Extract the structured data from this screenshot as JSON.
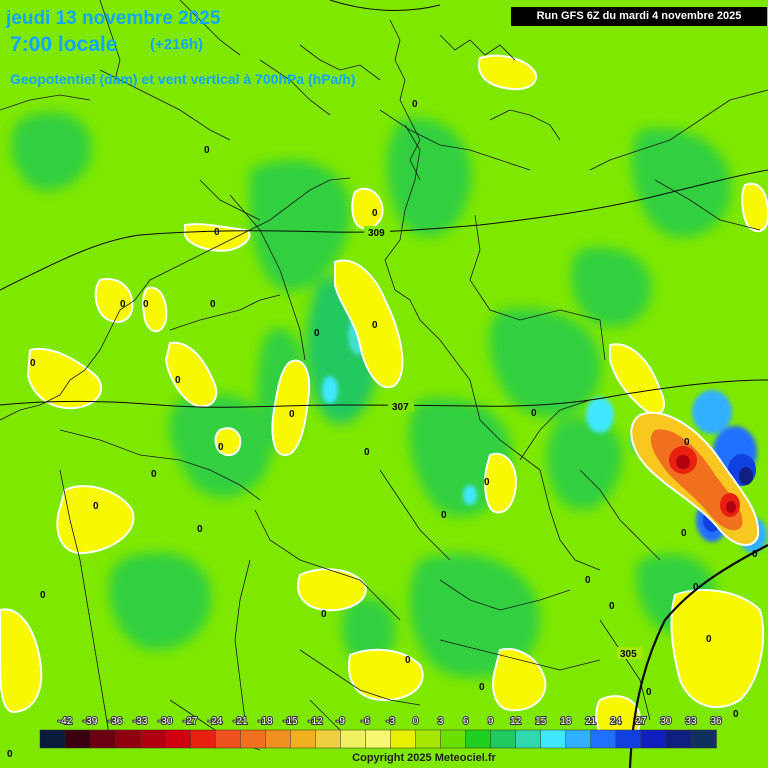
{
  "header": {
    "date_line": "jeudi 13 novembre 2025",
    "time_line": "7:00 locale",
    "lead": "(+216h)",
    "field_title": "Geopotentiel (dam) et vent vertical à 700hPa (hPa/h)",
    "run_info": "Run GFS 6Z du mardi 4 novembre 2025"
  },
  "isohypses": [
    "309",
    "307",
    "305"
  ],
  "zero_labels": [
    "0",
    "0",
    "0",
    "0",
    "0",
    "0",
    "0",
    "0",
    "0",
    "0",
    "0",
    "0",
    "0",
    "0",
    "0",
    "0",
    "0",
    "0",
    "0",
    "0",
    "0",
    "0",
    "0",
    "0",
    "0",
    "0",
    "0",
    "0",
    "0",
    "0",
    "0",
    "0",
    "0",
    "0"
  ],
  "legend": {
    "ticks": [
      "-42",
      "-39",
      "-36",
      "-33",
      "-30",
      "-27",
      "-24",
      "-21",
      "-18",
      "-15",
      "-12",
      "-9",
      "-6",
      "-3",
      "0",
      "3",
      "6",
      "9",
      "12",
      "15",
      "18",
      "21",
      "24",
      "27",
      "30",
      "33",
      "36"
    ],
    "colors": [
      "#0a1a3a",
      "#3a0010",
      "#6a0010",
      "#900010",
      "#b00010",
      "#d00010",
      "#e82010",
      "#f05020",
      "#f07020",
      "#f09020",
      "#f0b020",
      "#f0d040",
      "#f0f060",
      "#f8f870",
      "#e8f000",
      "#a8e800",
      "#6ae000",
      "#20d020",
      "#20c860",
      "#30d8b0",
      "#40e8ff",
      "#30b0ff",
      "#2070ff",
      "#1040e0",
      "#1020c0",
      "#102080",
      "#103060"
    ]
  },
  "footer": {
    "copyright": "Copyright 2025 Meteociel.fr"
  },
  "colors": {
    "background_green": "#7fe800",
    "dark_green": "#20d020",
    "yellow": "#f8f800",
    "red": "#e03010",
    "blue": "#1040e0",
    "title_blue": "#10a8ff"
  }
}
